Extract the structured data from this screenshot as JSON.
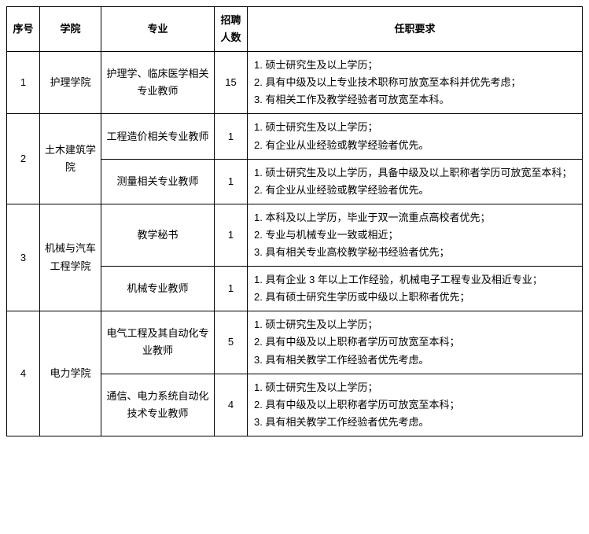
{
  "headers": {
    "seq": "序号",
    "college": "学院",
    "major": "专业",
    "count": "招聘人数",
    "req": "任职要求"
  },
  "rows": [
    {
      "seq": "1",
      "college": "护理学院",
      "major": "护理学、临床医学相关专业教师",
      "count": "15",
      "req": "1. 硕士研究生及以上学历；\n2. 具有中级及以上专业技术职称可放宽至本科并优先考虑；\n3. 有相关工作及教学经验者可放宽至本科。"
    },
    {
      "seq": "2",
      "college": "土木建筑学院",
      "major": "工程造价相关专业教师",
      "count": "1",
      "req": "1. 硕士研究生及以上学历；\n2. 有企业从业经验或教学经验者优先。"
    },
    {
      "major": "测量相关专业教师",
      "count": "1",
      "req": "1. 硕士研究生及以上学历，具备中级及以上职称者学历可放宽至本科；\n2. 有企业从业经验或教学经验者优先。"
    },
    {
      "seq": "3",
      "college": "机械与汽车工程学院",
      "major": "教学秘书",
      "count": "1",
      "req": "1. 本科及以上学历，毕业于双一流重点高校者优先；\n2. 专业与机械专业一致或相近；\n3. 具有相关专业高校教学秘书经验者优先；"
    },
    {
      "major": "机械专业教师",
      "count": "1",
      "req": "1. 具有企业 3 年以上工作经验，机械电子工程专业及相近专业；\n2. 具有硕士研究生学历或中级以上职称者优先；"
    },
    {
      "seq": "4",
      "college": "电力学院",
      "major": "电气工程及其自动化专业教师",
      "count": "5",
      "req": "1. 硕士研究生及以上学历；\n2. 具有中级及以上职称者学历可放宽至本科；\n3. 具有相关教学工作经验者优先考虑。"
    },
    {
      "major": "通信、电力系统自动化技术专业教师",
      "count": "4",
      "req": "1. 硕士研究生及以上学历；\n2. 具有中级及以上职称者学历可放宽至本科；\n3. 具有相关教学工作经验者优先考虑。"
    }
  ],
  "spans": [
    {
      "seqRowspan": 1,
      "colRowspan": 1
    },
    {
      "seqRowspan": 2,
      "colRowspan": 2
    },
    null,
    {
      "seqRowspan": 2,
      "colRowspan": 2
    },
    null,
    {
      "seqRowspan": 2,
      "colRowspan": 2
    },
    null
  ]
}
